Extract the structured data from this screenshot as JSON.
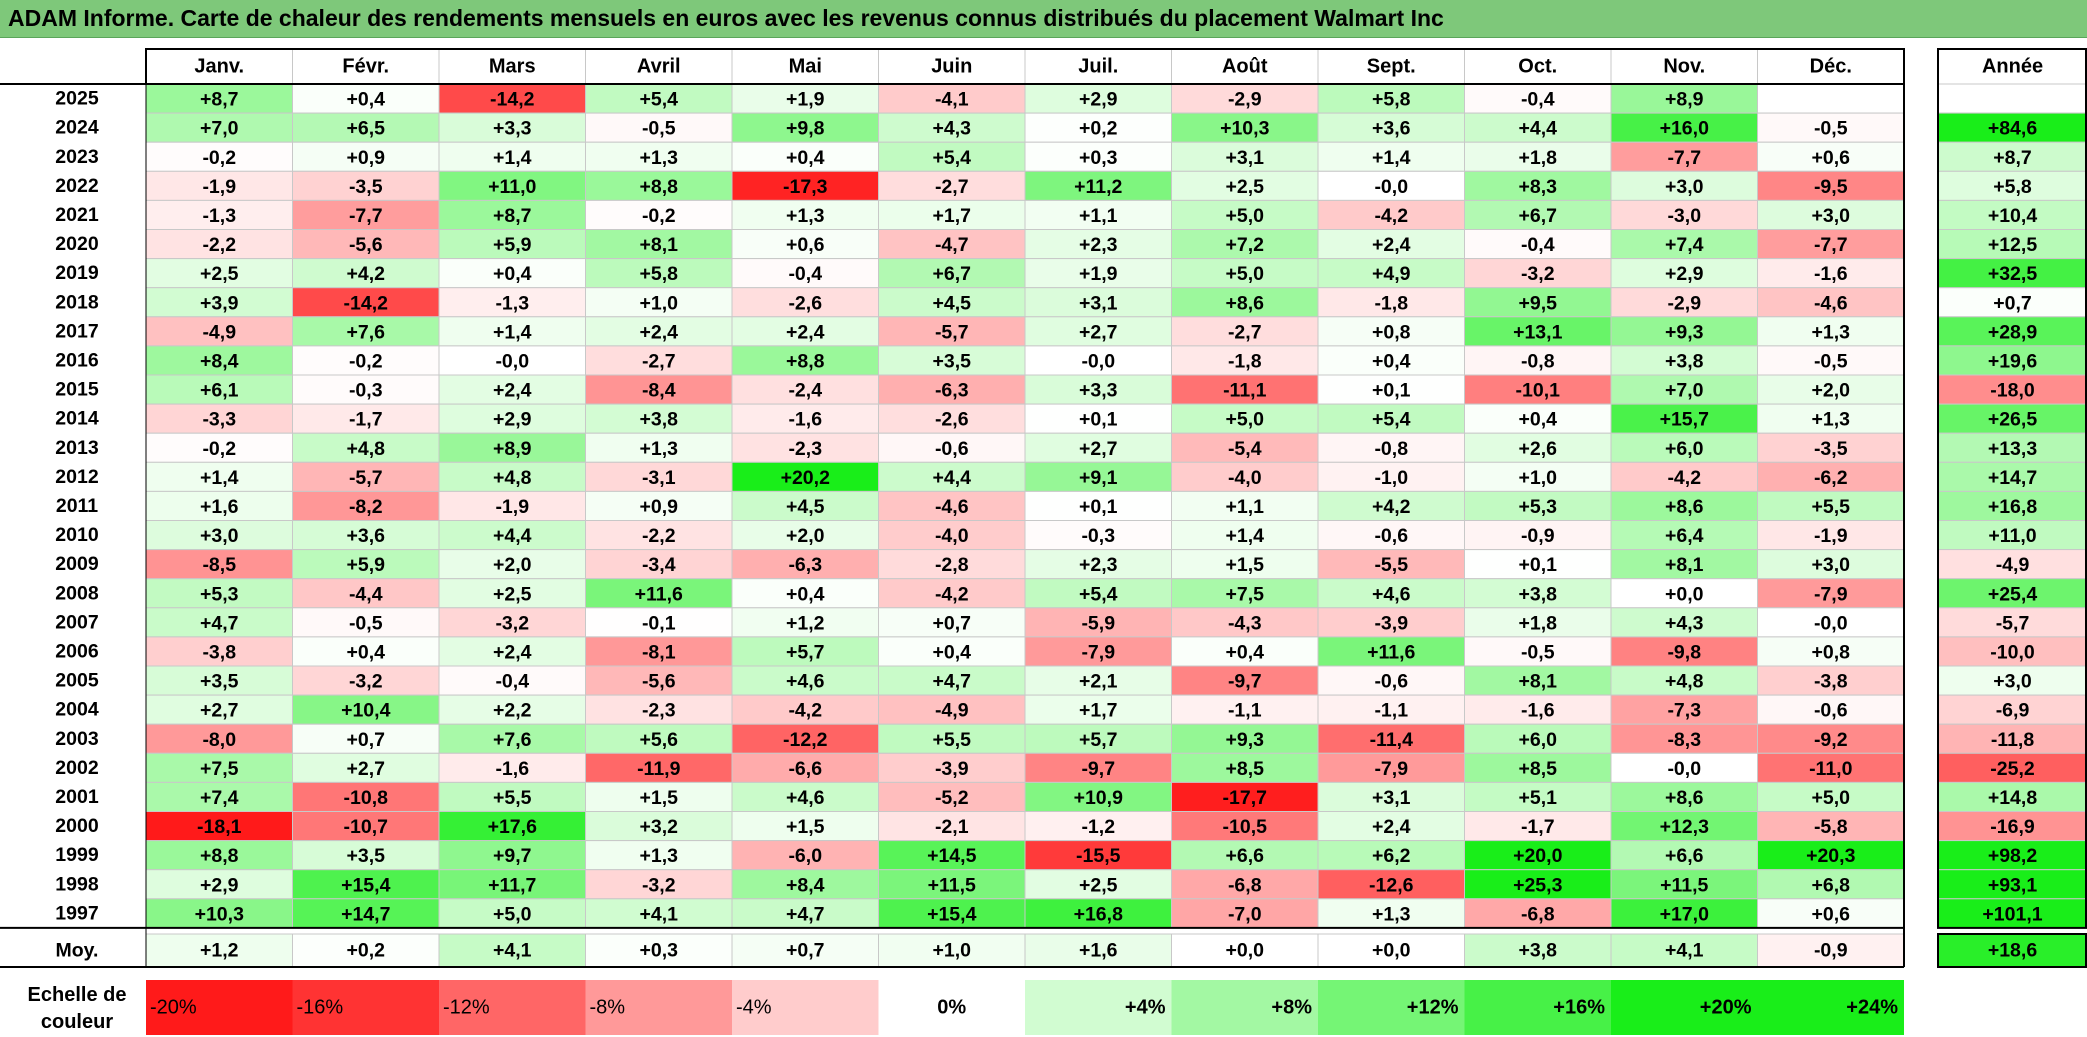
{
  "title": "ADAM Informe. Carte de chaleur des rendements mensuels en euros avec les revenus connus distribués du placement Walmart Inc",
  "chart_data": {
    "type": "heatmap",
    "title": "ADAM Informe. Carte de chaleur des rendements mensuels en euros avec les revenus connus distribués du placement Walmart Inc",
    "columns": [
      "Janv.",
      "Févr.",
      "Mars",
      "Avril",
      "Mai",
      "Juin",
      "Juil.",
      "Août",
      "Sept.",
      "Oct.",
      "Nov.",
      "Déc."
    ],
    "year_header": "Année",
    "rows": [
      {
        "label": "2025",
        "values": [
          "+8,7",
          "+0,4",
          "-14,2",
          "+5,4",
          "+1,9",
          "-4,1",
          "+2,9",
          "-2,9",
          "+5,8",
          "-0,4",
          "+8,9",
          ""
        ],
        "year": ""
      },
      {
        "label": "2024",
        "values": [
          "+7,0",
          "+6,5",
          "+3,3",
          "-0,5",
          "+9,8",
          "+4,3",
          "+0,2",
          "+10,3",
          "+3,6",
          "+4,4",
          "+16,0",
          "-0,5"
        ],
        "year": "+84,6"
      },
      {
        "label": "2023",
        "values": [
          "-0,2",
          "+0,9",
          "+1,4",
          "+1,3",
          "+0,4",
          "+5,4",
          "+0,3",
          "+3,1",
          "+1,4",
          "+1,8",
          "-7,7",
          "+0,6"
        ],
        "year": "+8,7"
      },
      {
        "label": "2022",
        "values": [
          "-1,9",
          "-3,5",
          "+11,0",
          "+8,8",
          "-17,3",
          "-2,7",
          "+11,2",
          "+2,5",
          "-0,0",
          "+8,3",
          "+3,0",
          "-9,5"
        ],
        "year": "+5,8"
      },
      {
        "label": "2021",
        "values": [
          "-1,3",
          "-7,7",
          "+8,7",
          "-0,2",
          "+1,3",
          "+1,7",
          "+1,1",
          "+5,0",
          "-4,2",
          "+6,7",
          "-3,0",
          "+3,0"
        ],
        "year": "+10,4"
      },
      {
        "label": "2020",
        "values": [
          "-2,2",
          "-5,6",
          "+5,9",
          "+8,1",
          "+0,6",
          "-4,7",
          "+2,3",
          "+7,2",
          "+2,4",
          "-0,4",
          "+7,4",
          "-7,7"
        ],
        "year": "+12,5"
      },
      {
        "label": "2019",
        "values": [
          "+2,5",
          "+4,2",
          "+0,4",
          "+5,8",
          "-0,4",
          "+6,7",
          "+1,9",
          "+5,0",
          "+4,9",
          "-3,2",
          "+2,9",
          "-1,6"
        ],
        "year": "+32,5"
      },
      {
        "label": "2018",
        "values": [
          "+3,9",
          "-14,2",
          "-1,3",
          "+1,0",
          "-2,6",
          "+4,5",
          "+3,1",
          "+8,6",
          "-1,8",
          "+9,5",
          "-2,9",
          "-4,6"
        ],
        "year": "+0,7"
      },
      {
        "label": "2017",
        "values": [
          "-4,9",
          "+7,6",
          "+1,4",
          "+2,4",
          "+2,4",
          "-5,7",
          "+2,7",
          "-2,7",
          "+0,8",
          "+13,1",
          "+9,3",
          "+1,3"
        ],
        "year": "+28,9"
      },
      {
        "label": "2016",
        "values": [
          "+8,4",
          "-0,2",
          "-0,0",
          "-2,7",
          "+8,8",
          "+3,5",
          "-0,0",
          "-1,8",
          "+0,4",
          "-0,8",
          "+3,8",
          "-0,5"
        ],
        "year": "+19,6"
      },
      {
        "label": "2015",
        "values": [
          "+6,1",
          "-0,3",
          "+2,4",
          "-8,4",
          "-2,4",
          "-6,3",
          "+3,3",
          "-11,1",
          "+0,1",
          "-10,1",
          "+7,0",
          "+2,0"
        ],
        "year": "-18,0"
      },
      {
        "label": "2014",
        "values": [
          "-3,3",
          "-1,7",
          "+2,9",
          "+3,8",
          "-1,6",
          "-2,6",
          "+0,1",
          "+5,0",
          "+5,4",
          "+0,4",
          "+15,7",
          "+1,3"
        ],
        "year": "+26,5"
      },
      {
        "label": "2013",
        "values": [
          "-0,2",
          "+4,8",
          "+8,9",
          "+1,3",
          "-2,3",
          "-0,6",
          "+2,7",
          "-5,4",
          "-0,8",
          "+2,6",
          "+6,0",
          "-3,5"
        ],
        "year": "+13,3"
      },
      {
        "label": "2012",
        "values": [
          "+1,4",
          "-5,7",
          "+4,8",
          "-3,1",
          "+20,2",
          "+4,4",
          "+9,1",
          "-4,0",
          "-1,0",
          "+1,0",
          "-4,2",
          "-6,2"
        ],
        "year": "+14,7"
      },
      {
        "label": "2011",
        "values": [
          "+1,6",
          "-8,2",
          "-1,9",
          "+0,9",
          "+4,5",
          "-4,6",
          "+0,1",
          "+1,1",
          "+4,2",
          "+5,3",
          "+8,6",
          "+5,5"
        ],
        "year": "+16,8"
      },
      {
        "label": "2010",
        "values": [
          "+3,0",
          "+3,6",
          "+4,4",
          "-2,2",
          "+2,0",
          "-4,0",
          "-0,3",
          "+1,4",
          "-0,6",
          "-0,9",
          "+6,4",
          "-1,9"
        ],
        "year": "+11,0"
      },
      {
        "label": "2009",
        "values": [
          "-8,5",
          "+5,9",
          "+2,0",
          "-3,4",
          "-6,3",
          "-2,8",
          "+2,3",
          "+1,5",
          "-5,5",
          "+0,1",
          "+8,1",
          "+3,0"
        ],
        "year": "-4,9"
      },
      {
        "label": "2008",
        "values": [
          "+5,3",
          "-4,4",
          "+2,5",
          "+11,6",
          "+0,4",
          "-4,2",
          "+5,4",
          "+7,5",
          "+4,6",
          "+3,8",
          "+0,0",
          "-7,9"
        ],
        "year": "+25,4"
      },
      {
        "label": "2007",
        "values": [
          "+4,7",
          "-0,5",
          "-3,2",
          "-0,1",
          "+1,2",
          "+0,7",
          "-5,9",
          "-4,3",
          "-3,9",
          "+1,8",
          "+4,3",
          "-0,0"
        ],
        "year": "-5,7"
      },
      {
        "label": "2006",
        "values": [
          "-3,8",
          "+0,4",
          "+2,4",
          "-8,1",
          "+5,7",
          "+0,4",
          "-7,9",
          "+0,4",
          "+11,6",
          "-0,5",
          "-9,8",
          "+0,8"
        ],
        "year": "-10,0"
      },
      {
        "label": "2005",
        "values": [
          "+3,5",
          "-3,2",
          "-0,4",
          "-5,6",
          "+4,6",
          "+4,7",
          "+2,1",
          "-9,7",
          "-0,6",
          "+8,1",
          "+4,8",
          "-3,8"
        ],
        "year": "+3,0"
      },
      {
        "label": "2004",
        "values": [
          "+2,7",
          "+10,4",
          "+2,2",
          "-2,3",
          "-4,2",
          "-4,9",
          "+1,7",
          "-1,1",
          "-1,1",
          "-1,6",
          "-7,3",
          "-0,6"
        ],
        "year": "-6,9"
      },
      {
        "label": "2003",
        "values": [
          "-8,0",
          "+0,7",
          "+7,6",
          "+5,6",
          "-12,2",
          "+5,5",
          "+5,7",
          "+9,3",
          "-11,4",
          "+6,0",
          "-8,3",
          "-9,2"
        ],
        "year": "-11,8"
      },
      {
        "label": "2002",
        "values": [
          "+7,5",
          "+2,7",
          "-1,6",
          "-11,9",
          "-6,6",
          "-3,9",
          "-9,7",
          "+8,5",
          "-7,9",
          "+8,5",
          "-0,0",
          "-11,0"
        ],
        "year": "-25,2"
      },
      {
        "label": "2001",
        "values": [
          "+7,4",
          "-10,8",
          "+5,5",
          "+1,5",
          "+4,6",
          "-5,2",
          "+10,9",
          "-17,7",
          "+3,1",
          "+5,1",
          "+8,6",
          "+5,0"
        ],
        "year": "+14,8"
      },
      {
        "label": "2000",
        "values": [
          "-18,1",
          "-10,7",
          "+17,6",
          "+3,2",
          "+1,5",
          "-2,1",
          "-1,2",
          "-10,5",
          "+2,4",
          "-1,7",
          "+12,3",
          "-5,8"
        ],
        "year": "-16,9"
      },
      {
        "label": "1999",
        "values": [
          "+8,8",
          "+3,5",
          "+9,7",
          "+1,3",
          "-6,0",
          "+14,5",
          "-15,5",
          "+6,6",
          "+6,2",
          "+20,0",
          "+6,6",
          "+20,3"
        ],
        "year": "+98,2"
      },
      {
        "label": "1998",
        "values": [
          "+2,9",
          "+15,4",
          "+11,7",
          "-3,2",
          "+8,4",
          "+11,5",
          "+2,5",
          "-6,8",
          "-12,6",
          "+25,3",
          "+11,5",
          "+6,8"
        ],
        "year": "+93,1"
      },
      {
        "label": "1997",
        "values": [
          "+10,3",
          "+14,7",
          "+5,0",
          "+4,1",
          "+4,7",
          "+15,4",
          "+16,8",
          "-7,0",
          "+1,3",
          "-6,8",
          "+17,0",
          "+0,6"
        ],
        "year": "+101,1"
      }
    ],
    "average": {
      "label": "Moy.",
      "values": [
        "+1,2",
        "+0,2",
        "+4,1",
        "+0,3",
        "+0,7",
        "+1,0",
        "+1,6",
        "+0,0",
        "+0,0",
        "+3,8",
        "+4,1",
        "-0,9"
      ],
      "year": "+18,6"
    },
    "scale": {
      "label_line1": "Echelle de",
      "label_line2": "couleur",
      "labels": [
        "-20%",
        "-16%",
        "-12%",
        "-8%",
        "-4%",
        "0%",
        "+4%",
        "+8%",
        "+12%",
        "+16%",
        "+20%",
        "+24%"
      ],
      "values": [
        -20,
        -16,
        -12,
        -8,
        -4,
        0,
        4,
        8,
        12,
        16,
        20,
        24
      ]
    },
    "colors": {
      "title_bar": "#7ec87a",
      "negative_max": "#ff1a1a",
      "neutral": "#ffffff",
      "positive_max": "#19ee19",
      "grid": "#c8c8c8",
      "border": "#000000"
    }
  }
}
